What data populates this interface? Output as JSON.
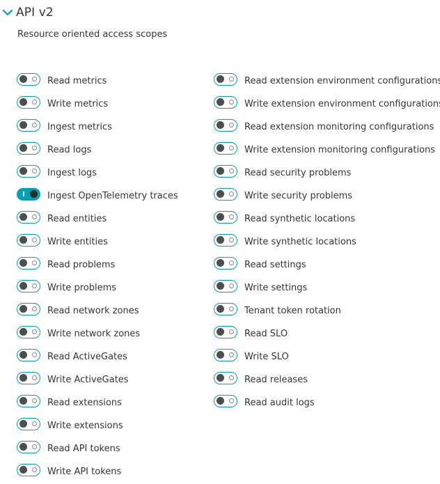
{
  "section": {
    "title": "API v2",
    "chevron_icon": "chevron-down-icon",
    "accent_color": "#00a1b2"
  },
  "subtitle": "Resource oriented access scopes",
  "left_scopes": [
    {
      "label": "Read metrics",
      "enabled": false
    },
    {
      "label": "Write metrics",
      "enabled": false
    },
    {
      "label": "Ingest metrics",
      "enabled": false
    },
    {
      "label": "Read logs",
      "enabled": false
    },
    {
      "label": "Ingest logs",
      "enabled": false
    },
    {
      "label": "Ingest OpenTelemetry traces",
      "enabled": true
    },
    {
      "label": "Read entities",
      "enabled": false
    },
    {
      "label": "Write entities",
      "enabled": false
    },
    {
      "label": "Read problems",
      "enabled": false
    },
    {
      "label": "Write problems",
      "enabled": false
    },
    {
      "label": "Read network zones",
      "enabled": false
    },
    {
      "label": "Write network zones",
      "enabled": false
    },
    {
      "label": "Read ActiveGates",
      "enabled": false
    },
    {
      "label": "Write ActiveGates",
      "enabled": false
    },
    {
      "label": "Read extensions",
      "enabled": false
    },
    {
      "label": "Write extensions",
      "enabled": false
    },
    {
      "label": "Read API tokens",
      "enabled": false
    },
    {
      "label": "Write API tokens",
      "enabled": false
    }
  ],
  "right_scopes": [
    {
      "label": "Read extension environment configurations",
      "enabled": false
    },
    {
      "label": "Write extension environment configurations",
      "enabled": false
    },
    {
      "label": "Read extension monitoring configurations",
      "enabled": false
    },
    {
      "label": "Write extension monitoring configurations",
      "enabled": false
    },
    {
      "label": "Read security problems",
      "enabled": false
    },
    {
      "label": "Write security problems",
      "enabled": false
    },
    {
      "label": "Read synthetic locations",
      "enabled": false
    },
    {
      "label": "Write synthetic locations",
      "enabled": false
    },
    {
      "label": "Read settings",
      "enabled": false
    },
    {
      "label": "Write settings",
      "enabled": false
    },
    {
      "label": "Tenant token rotation",
      "enabled": false
    },
    {
      "label": "Read SLO",
      "enabled": false
    },
    {
      "label": "Write SLO",
      "enabled": false
    },
    {
      "label": "Read releases",
      "enabled": false
    },
    {
      "label": "Read audit logs",
      "enabled": false
    }
  ]
}
